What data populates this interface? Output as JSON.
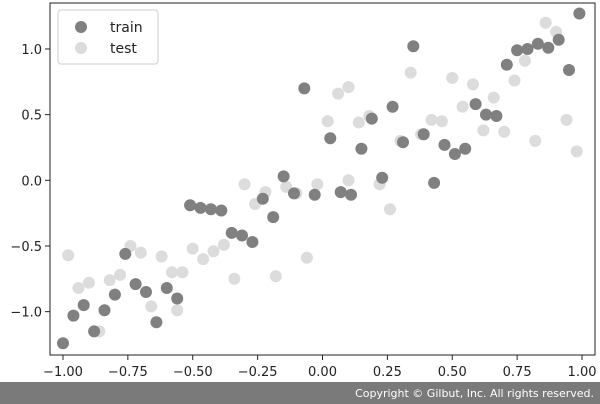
{
  "chart_data": {
    "type": "scatter",
    "title": "",
    "xlabel": "",
    "ylabel": "",
    "xlim": [
      -1.05,
      1.05
    ],
    "ylim": [
      -1.33,
      1.35
    ],
    "xticks": [
      -1.0,
      -0.75,
      -0.5,
      -0.25,
      0.0,
      0.25,
      0.5,
      0.75,
      1.0
    ],
    "xtick_labels": [
      "−1.00",
      "−0.75",
      "−0.50",
      "−0.25",
      "0.00",
      "0.25",
      "0.50",
      "0.75",
      "1.00"
    ],
    "yticks": [
      -1.0,
      -0.5,
      0.0,
      0.5,
      1.0
    ],
    "ytick_labels": [
      "−1.0",
      "−0.5",
      "0.0",
      "0.5",
      "1.0"
    ],
    "grid": false,
    "legend": "top-left",
    "series": [
      {
        "name": "train",
        "color": "#808080",
        "x": [
          -1.0,
          -0.96,
          -0.92,
          -0.88,
          -0.84,
          -0.8,
          -0.76,
          -0.72,
          -0.68,
          -0.64,
          -0.6,
          -0.56,
          -0.51,
          -0.47,
          -0.43,
          -0.39,
          -0.35,
          -0.31,
          -0.27,
          -0.23,
          -0.19,
          -0.15,
          -0.11,
          -0.07,
          -0.03,
          0.03,
          0.07,
          0.11,
          0.15,
          0.19,
          0.23,
          0.27,
          0.31,
          0.35,
          0.39,
          0.43,
          0.47,
          0.51,
          0.55,
          0.59,
          0.63,
          0.67,
          0.71,
          0.75,
          0.79,
          0.83,
          0.87,
          0.91,
          0.95,
          0.99
        ],
        "y": [
          -1.24,
          -1.03,
          -0.95,
          -1.15,
          -0.99,
          -0.87,
          -0.56,
          -0.79,
          -0.85,
          -1.08,
          -0.82,
          -0.9,
          -0.19,
          -0.21,
          -0.22,
          -0.23,
          -0.4,
          -0.42,
          -0.47,
          -0.14,
          -0.28,
          0.03,
          -0.1,
          0.7,
          -0.11,
          0.32,
          -0.09,
          -0.11,
          0.24,
          0.47,
          0.02,
          0.56,
          0.29,
          1.02,
          0.35,
          -0.02,
          0.27,
          0.2,
          0.24,
          0.58,
          0.5,
          0.49,
          0.88,
          0.99,
          1.0,
          1.04,
          1.01,
          1.07,
          0.84,
          1.27
        ]
      },
      {
        "name": "test",
        "color": "#dcdcdc",
        "x": [
          -0.98,
          -0.94,
          -0.9,
          -0.86,
          -0.82,
          -0.78,
          -0.74,
          -0.7,
          -0.66,
          -0.62,
          -0.58,
          -0.54,
          -0.5,
          -0.46,
          -0.42,
          -0.38,
          -0.34,
          -0.3,
          -0.26,
          -0.22,
          -0.18,
          -0.14,
          -0.1,
          -0.06,
          -0.02,
          0.02,
          0.06,
          0.1,
          0.14,
          0.18,
          0.22,
          0.26,
          0.3,
          0.34,
          0.38,
          0.42,
          0.46,
          0.5,
          0.54,
          0.58,
          0.62,
          0.66,
          0.7,
          0.74,
          0.78,
          0.82,
          0.86,
          0.9,
          0.94,
          0.98,
          -0.56,
          0.1
        ],
        "y": [
          -0.57,
          -0.82,
          -0.78,
          -1.15,
          -0.76,
          -0.72,
          -0.5,
          -0.55,
          -0.96,
          -0.58,
          -0.7,
          -0.7,
          -0.52,
          -0.6,
          -0.54,
          -0.49,
          -0.75,
          -0.03,
          -0.18,
          -0.09,
          -0.73,
          -0.05,
          -0.1,
          -0.59,
          -0.03,
          0.45,
          0.66,
          0.71,
          0.44,
          0.49,
          -0.03,
          -0.22,
          0.3,
          0.82,
          0.35,
          0.46,
          0.45,
          0.78,
          0.56,
          0.73,
          0.38,
          0.63,
          0.37,
          0.76,
          0.91,
          0.3,
          1.2,
          1.13,
          0.46,
          0.22,
          -0.99,
          0.0
        ]
      }
    ]
  },
  "footer": {
    "copyright": "Copyright © Gilbut, Inc. All rights reserved."
  }
}
